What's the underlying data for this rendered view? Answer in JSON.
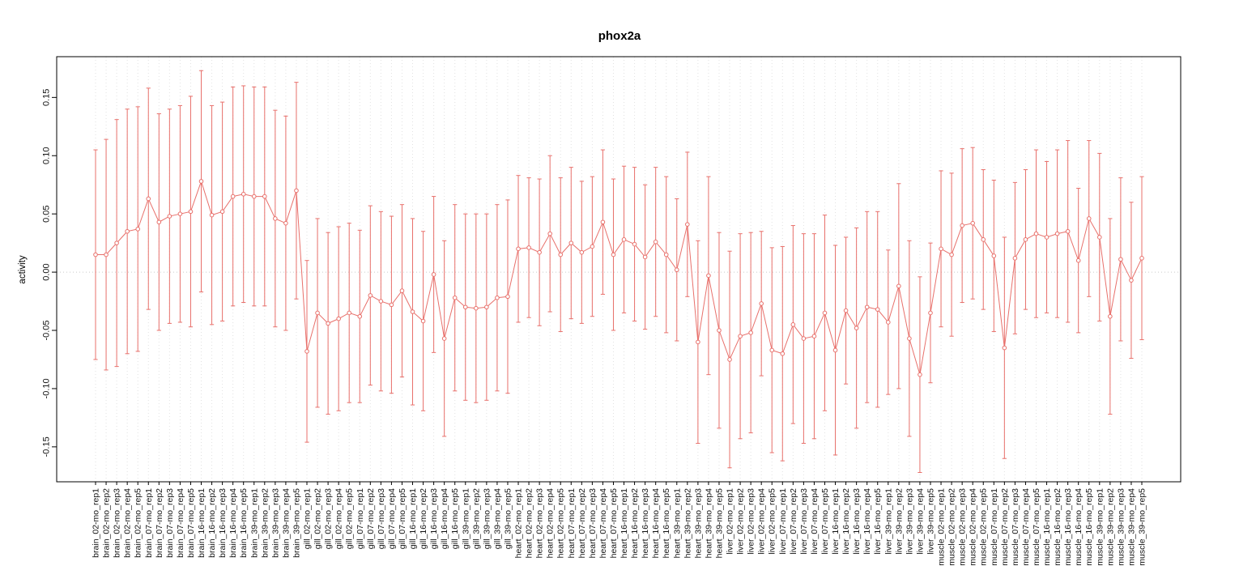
{
  "chart_data": {
    "type": "scatter",
    "title": "phox2a",
    "xlabel": "",
    "ylabel": "activity",
    "ylim": [
      -0.18,
      0.185
    ],
    "yticks": [
      -0.15,
      -0.1,
      -0.05,
      0.0,
      0.05,
      0.1,
      0.15
    ],
    "grid": "vertical dotted gridline at every category; dotted horizontal line at y=0",
    "legend": "none",
    "marker": "open-circle",
    "error_bars": "symmetric, capped",
    "color": "#e8706b",
    "grid_color": "#e2e2e2",
    "zero_line_color": "#c9c9c9",
    "frame_color": "#000000",
    "labels": [
      "brain_02-mo_rep1",
      "brain_02-mo_rep2",
      "brain_02-mo_rep3",
      "brain_02-mo_rep4",
      "brain_02-mo_rep5",
      "brain_07-mo_rep1",
      "brain_07-mo_rep2",
      "brain_07-mo_rep3",
      "brain_07-mo_rep4",
      "brain_07-mo_rep5",
      "brain_16-mo_rep1",
      "brain_16-mo_rep2",
      "brain_16-mo_rep3",
      "brain_16-mo_rep4",
      "brain_16-mo_rep5",
      "brain_39-mo_rep1",
      "brain_39-mo_rep2",
      "brain_39-mo_rep3",
      "brain_39-mo_rep4",
      "brain_39-mo_rep5",
      "gill_02-mo_rep1",
      "gill_02-mo_rep2",
      "gill_02-mo_rep3",
      "gill_02-mo_rep4",
      "gill_02-mo_rep5",
      "gill_07-mo_rep1",
      "gill_07-mo_rep2",
      "gill_07-mo_rep3",
      "gill_07-mo_rep4",
      "gill_07-mo_rep5",
      "gill_16-mo_rep1",
      "gill_16-mo_rep2",
      "gill_16-mo_rep3",
      "gill_16-mo_rep4",
      "gill_16-mo_rep5",
      "gill_39-mo_rep1",
      "gill_39-mo_rep2",
      "gill_39-mo_rep3",
      "gill_39-mo_rep4",
      "gill_39-mo_rep5",
      "heart_02-mo_rep1",
      "heart_02-mo_rep2",
      "heart_02-mo_rep3",
      "heart_02-mo_rep4",
      "heart_02-mo_rep5",
      "heart_07-mo_rep1",
      "heart_07-mo_rep2",
      "heart_07-mo_rep3",
      "heart_07-mo_rep4",
      "heart_07-mo_rep5",
      "heart_16-mo_rep1",
      "heart_16-mo_rep2",
      "heart_16-mo_rep3",
      "heart_16-mo_rep4",
      "heart_16-mo_rep5",
      "heart_39-mo_rep1",
      "heart_39-mo_rep2",
      "heart_39-mo_rep3",
      "heart_39-mo_rep4",
      "heart_39-mo_rep5",
      "liver_02-mo_rep1",
      "liver_02-mo_rep2",
      "liver_02-mo_rep3",
      "liver_02-mo_rep4",
      "liver_02-mo_rep5",
      "liver_07-mo_rep1",
      "liver_07-mo_rep2",
      "liver_07-mo_rep3",
      "liver_07-mo_rep4",
      "liver_07-mo_rep5",
      "liver_16-mo_rep1",
      "liver_16-mo_rep2",
      "liver_16-mo_rep3",
      "liver_16-mo_rep4",
      "liver_16-mo_rep5",
      "liver_39-mo_rep1",
      "liver_39-mo_rep2",
      "liver_39-mo_rep3",
      "liver_39-mo_rep4",
      "liver_39-mo_rep5",
      "muscle_02-mo_rep1",
      "muscle_02-mo_rep2",
      "muscle_02-mo_rep3",
      "muscle_02-mo_rep4",
      "muscle_02-mo_rep5",
      "muscle_07-mo_rep1",
      "muscle_07-mo_rep2",
      "muscle_07-mo_rep3",
      "muscle_07-mo_rep4",
      "muscle_07-mo_rep5",
      "muscle_16-mo_rep1",
      "muscle_16-mo_rep2",
      "muscle_16-mo_rep3",
      "muscle_16-mo_rep4",
      "muscle_16-mo_rep5",
      "muscle_39-mo_rep1",
      "muscle_39-mo_rep2",
      "muscle_39-mo_rep3",
      "muscle_39-mo_rep4",
      "muscle_39-mo_rep5"
    ],
    "values": [
      0.015,
      0.015,
      0.025,
      0.035,
      0.037,
      0.063,
      0.043,
      0.048,
      0.05,
      0.052,
      0.078,
      0.049,
      0.052,
      0.065,
      0.067,
      0.065,
      0.065,
      0.046,
      0.042,
      0.07,
      -0.068,
      -0.035,
      -0.044,
      -0.04,
      -0.035,
      -0.038,
      -0.02,
      -0.025,
      -0.028,
      -0.016,
      -0.034,
      -0.042,
      -0.002,
      -0.057,
      -0.022,
      -0.03,
      -0.031,
      -0.03,
      -0.022,
      -0.021,
      0.02,
      0.021,
      0.017,
      0.033,
      0.015,
      0.025,
      0.017,
      0.022,
      0.043,
      0.015,
      0.028,
      0.024,
      0.013,
      0.026,
      0.015,
      0.002,
      0.041,
      -0.06,
      -0.003,
      -0.05,
      -0.075,
      -0.055,
      -0.052,
      -0.027,
      -0.067,
      -0.07,
      -0.045,
      -0.057,
      -0.055,
      -0.035,
      -0.067,
      -0.033,
      -0.048,
      -0.03,
      -0.032,
      -0.043,
      -0.012,
      -0.057,
      -0.088,
      -0.035,
      0.02,
      0.015,
      0.04,
      0.042,
      0.028,
      0.014,
      -0.065,
      0.012,
      0.028,
      0.033,
      0.03,
      0.033,
      0.035,
      0.01,
      0.046,
      0.03,
      -0.038,
      0.011,
      -0.007,
      0.012
    ],
    "err": [
      0.09,
      0.099,
      0.106,
      0.105,
      0.105,
      0.095,
      0.093,
      0.092,
      0.093,
      0.099,
      0.095,
      0.094,
      0.094,
      0.094,
      0.093,
      0.094,
      0.094,
      0.093,
      0.092,
      0.093,
      0.078,
      0.081,
      0.078,
      0.079,
      0.077,
      0.074,
      0.077,
      0.077,
      0.076,
      0.074,
      0.08,
      0.077,
      0.067,
      0.084,
      0.08,
      0.08,
      0.081,
      0.08,
      0.08,
      0.083,
      0.063,
      0.06,
      0.063,
      0.067,
      0.066,
      0.065,
      0.061,
      0.06,
      0.062,
      0.065,
      0.063,
      0.066,
      0.062,
      0.064,
      0.067,
      0.061,
      0.062,
      0.087,
      0.085,
      0.084,
      0.093,
      0.088,
      0.086,
      0.062,
      0.088,
      0.092,
      0.085,
      0.09,
      0.088,
      0.084,
      0.09,
      0.063,
      0.086,
      0.082,
      0.084,
      0.062,
      0.088,
      0.084,
      0.084,
      0.06,
      0.067,
      0.07,
      0.066,
      0.065,
      0.06,
      0.065,
      0.095,
      0.065,
      0.06,
      0.072,
      0.065,
      0.072,
      0.078,
      0.062,
      0.067,
      0.072,
      0.084,
      0.07,
      0.067,
      0.07
    ]
  }
}
